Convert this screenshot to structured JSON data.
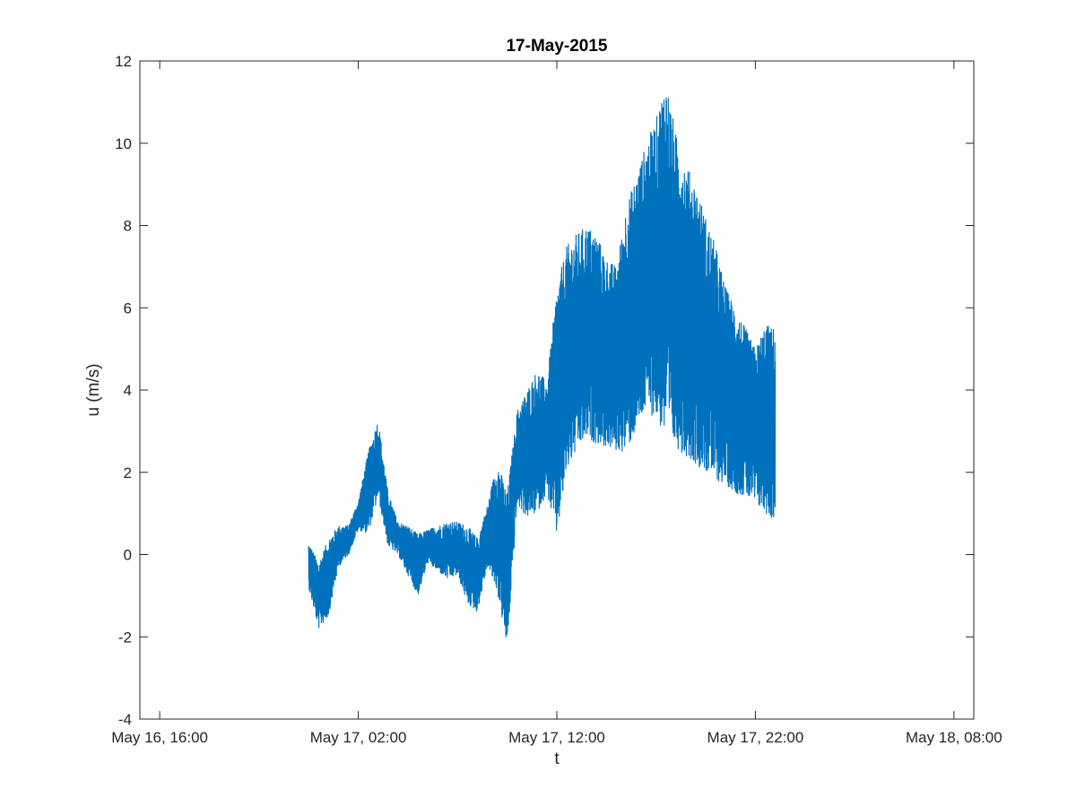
{
  "chart_data": {
    "type": "line",
    "title": "17-May-2015",
    "xlabel": "t",
    "ylabel": "u (m/s)",
    "x_axis_type": "datetime",
    "xlim": [
      "2015-05-16 15:00",
      "2015-05-18 09:00"
    ],
    "ylim": [
      -4,
      12
    ],
    "xticks": [
      "2015-05-16 16:00",
      "2015-05-17 02:00",
      "2015-05-17 12:00",
      "2015-05-17 22:00",
      "2015-05-18 08:00"
    ],
    "xtick_labels": [
      "May 16, 16:00",
      "May 17, 02:00",
      "May 17, 12:00",
      "May 17, 22:00",
      "May 18, 08:00"
    ],
    "yticks": [
      -4,
      -2,
      0,
      2,
      4,
      6,
      8,
      10,
      12
    ],
    "ytick_labels": [
      "-4",
      "-2",
      "0",
      "2",
      "4",
      "6",
      "8",
      "10",
      "12"
    ],
    "grid": false,
    "line_color": "#0072BD",
    "series": [
      {
        "envelope": {
          "x": [
            "2015-05-16 23:30",
            "2015-05-17 00:00",
            "2015-05-17 00:30",
            "2015-05-17 01:00",
            "2015-05-17 01:30",
            "2015-05-17 02:00",
            "2015-05-17 02:30",
            "2015-05-17 03:00",
            "2015-05-17 03:30",
            "2015-05-17 04:00",
            "2015-05-17 04:30",
            "2015-05-17 05:00",
            "2015-05-17 05:30",
            "2015-05-17 06:00",
            "2015-05-17 06:30",
            "2015-05-17 07:00",
            "2015-05-17 07:30",
            "2015-05-17 08:00",
            "2015-05-17 08:30",
            "2015-05-17 09:00",
            "2015-05-17 09:30",
            "2015-05-17 10:00",
            "2015-05-17 10:30",
            "2015-05-17 11:00",
            "2015-05-17 11:30",
            "2015-05-17 12:00",
            "2015-05-17 12:30",
            "2015-05-17 13:00",
            "2015-05-17 13:30",
            "2015-05-17 14:00",
            "2015-05-17 14:30",
            "2015-05-17 15:00",
            "2015-05-17 15:30",
            "2015-05-17 16:00",
            "2015-05-17 16:30",
            "2015-05-17 17:00",
            "2015-05-17 17:30",
            "2015-05-17 18:00",
            "2015-05-17 18:30",
            "2015-05-17 19:00",
            "2015-05-17 19:30",
            "2015-05-17 20:00",
            "2015-05-17 20:30",
            "2015-05-17 21:00",
            "2015-05-17 21:30",
            "2015-05-17 22:00",
            "2015-05-17 22:30",
            "2015-05-17 23:00"
          ],
          "upper": [
            0.3,
            -0.2,
            0.4,
            0.7,
            0.7,
            1.3,
            2.5,
            3.3,
            1.5,
            0.8,
            0.7,
            0.5,
            0.6,
            0.7,
            0.8,
            0.8,
            0.7,
            0.4,
            1.2,
            2.3,
            1.5,
            3.5,
            4.0,
            4.5,
            4.2,
            6.5,
            7.5,
            7.8,
            8.0,
            7.8,
            7.2,
            7.0,
            8.5,
            9.2,
            10.0,
            10.6,
            11.6,
            10.2,
            9.5,
            9.0,
            8.2,
            7.5,
            6.5,
            6.0,
            5.5,
            5.0,
            5.6,
            5.5
          ],
          "lower": [
            -0.8,
            -1.8,
            -1.5,
            -0.3,
            0.0,
            0.6,
            0.5,
            1.4,
            0.2,
            0.0,
            -0.5,
            -1.0,
            -0.2,
            -0.4,
            -0.6,
            -0.5,
            -1.2,
            -1.4,
            -0.3,
            -0.9,
            -2.3,
            1.2,
            0.9,
            1.0,
            1.5,
            0.4,
            2.0,
            2.5,
            2.8,
            2.7,
            2.6,
            2.5,
            2.5,
            3.0,
            3.5,
            3.3,
            2.8,
            2.6,
            2.4,
            2.2,
            2.0,
            1.8,
            1.7,
            1.5,
            1.4,
            1.2,
            1.0,
            0.8
          ]
        }
      }
    ]
  }
}
